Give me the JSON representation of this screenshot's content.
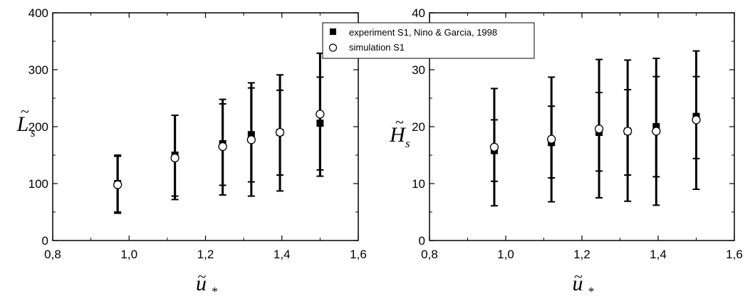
{
  "legend": {
    "experiment_label": "experiment S1, Nino & Garcia, 1998",
    "simulation_label": "simulation S1"
  },
  "chart_data": [
    {
      "type": "scatter",
      "ylabel": "L",
      "ylabel_sub": "s",
      "xlabel": "u",
      "xlabel_sub": "*",
      "xlim": [
        0.8,
        1.6
      ],
      "ylim": [
        0,
        400
      ],
      "x_ticks": [
        "0,8",
        "1,0",
        "1,2",
        "1,4",
        "1,6"
      ],
      "y_ticks": [
        "0",
        "100",
        "200",
        "300",
        "400"
      ],
      "x_tick_values": [
        0.8,
        1.0,
        1.2,
        1.4,
        1.6
      ],
      "y_tick_values": [
        0,
        100,
        200,
        300,
        400
      ],
      "series": [
        {
          "name": "experiment S1, Nino & Garcia, 1998",
          "marker": "filled-square",
          "x": [
            0.97,
            1.12,
            1.245,
            1.32,
            1.395,
            1.5
          ],
          "y": [
            100,
            150,
            170,
            186,
            190,
            206
          ],
          "err_low": [
            50,
            78,
            97,
            103,
            115,
            124
          ],
          "err_high": [
            150,
            220,
            240,
            268,
            264,
            287
          ]
        },
        {
          "name": "simulation S1",
          "marker": "open-circle",
          "x": [
            0.97,
            1.12,
            1.245,
            1.32,
            1.395,
            1.5
          ],
          "y": [
            98,
            145,
            165,
            177,
            190,
            222
          ],
          "err_low": [
            48,
            72,
            80,
            78,
            87,
            113
          ],
          "err_high": [
            148,
            220,
            248,
            277,
            291,
            329
          ]
        }
      ]
    },
    {
      "type": "scatter",
      "ylabel": "H",
      "ylabel_sub": "s",
      "xlabel": "u",
      "xlabel_sub": "*",
      "xlim": [
        0.8,
        1.6
      ],
      "ylim": [
        0,
        40
      ],
      "x_ticks": [
        "0,8",
        "1,0",
        "1,2",
        "1,4",
        "1,6"
      ],
      "y_ticks": [
        "0",
        "10",
        "20",
        "30",
        "40"
      ],
      "x_tick_values": [
        0.8,
        1.0,
        1.2,
        1.4,
        1.6
      ],
      "y_tick_values": [
        0,
        10,
        20,
        30,
        40
      ],
      "series": [
        {
          "name": "experiment S1, Nino & Garcia, 1998",
          "marker": "filled-square",
          "x": [
            0.97,
            1.12,
            1.245,
            1.32,
            1.395,
            1.5
          ],
          "y": [
            15.8,
            17.2,
            19.0,
            19.2,
            20.0,
            21.8
          ],
          "err_low": [
            10.4,
            11.0,
            12.2,
            11.5,
            11.2,
            14.4
          ],
          "err_high": [
            21.2,
            23.6,
            26.0,
            26.5,
            28.8,
            28.8
          ]
        },
        {
          "name": "simulation S1",
          "marker": "open-circle",
          "x": [
            0.97,
            1.12,
            1.245,
            1.32,
            1.395,
            1.5
          ],
          "y": [
            16.4,
            17.8,
            19.6,
            19.2,
            19.2,
            21.2
          ],
          "err_low": [
            6.1,
            6.8,
            7.5,
            6.9,
            6.2,
            9.0
          ],
          "err_high": [
            26.7,
            28.7,
            31.8,
            31.7,
            32.0,
            33.3
          ]
        }
      ]
    }
  ]
}
